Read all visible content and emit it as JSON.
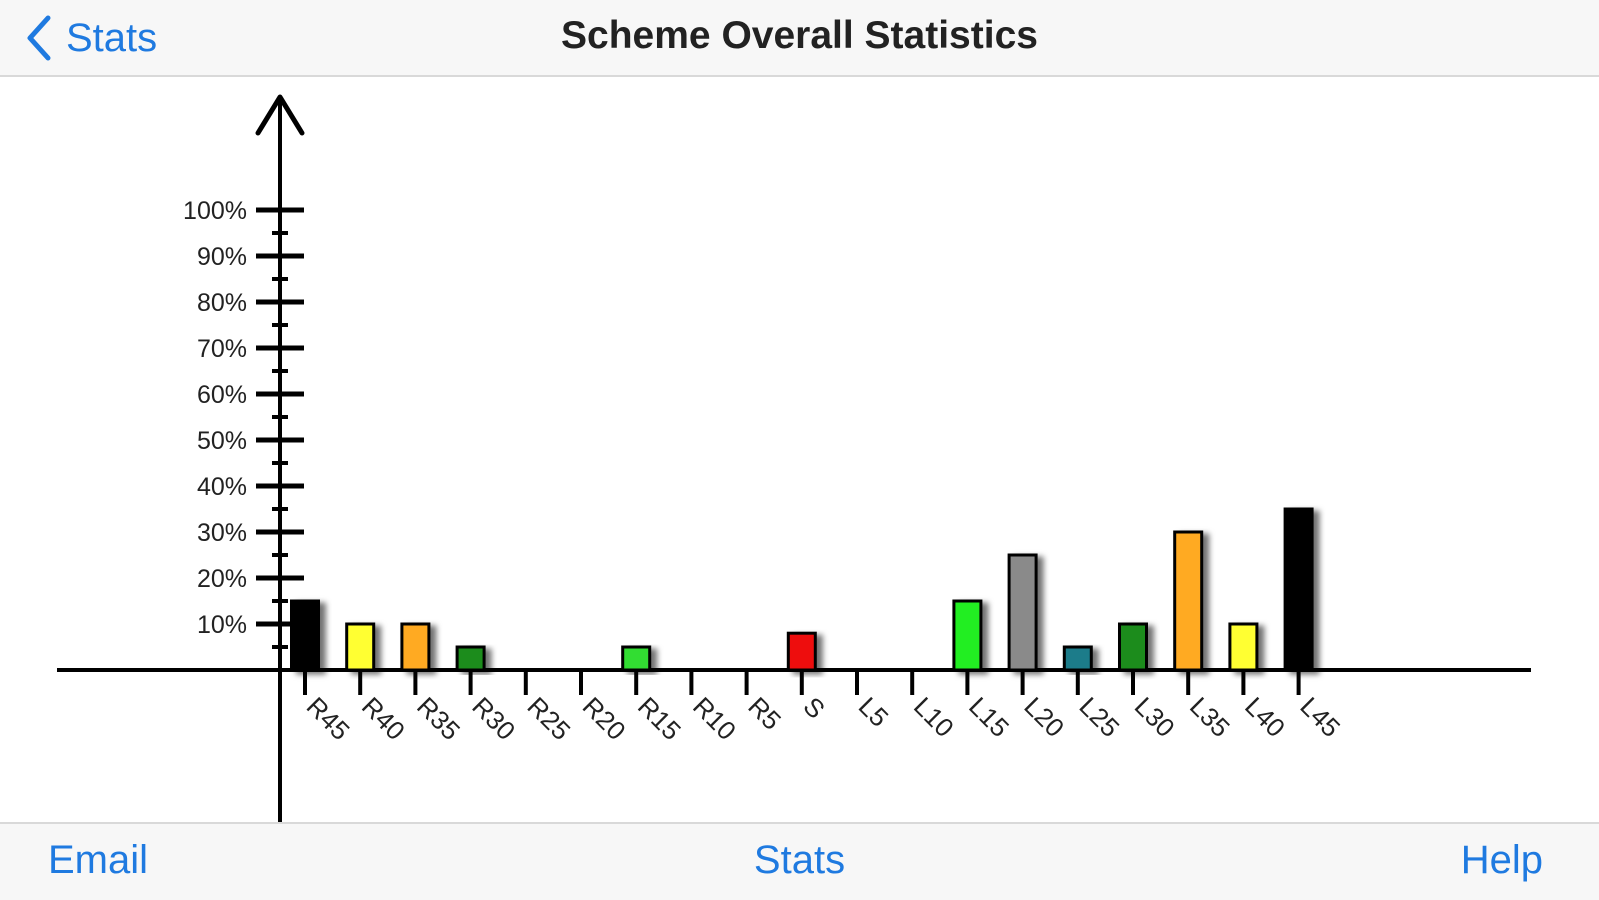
{
  "navbar": {
    "back_label": "Stats",
    "back_icon": "chevron-left-icon",
    "title": "Scheme Overall Statistics"
  },
  "toolbar": {
    "email_label": "Email",
    "stats_label": "Stats",
    "help_label": "Help"
  },
  "colors": {
    "accent": "#1f7ae0"
  },
  "chart_data": {
    "type": "bar",
    "title": "",
    "xlabel": "",
    "ylabel": "",
    "ylim": [
      0,
      100
    ],
    "y_ticks": [
      "10%",
      "20%",
      "30%",
      "40%",
      "50%",
      "60%",
      "70%",
      "80%",
      "90%",
      "100%"
    ],
    "categories": [
      "R45",
      "R40",
      "R35",
      "R30",
      "R25",
      "R20",
      "R15",
      "R10",
      "R5",
      "S",
      "L5",
      "L10",
      "L15",
      "L20",
      "L25",
      "L30",
      "L35",
      "L40",
      "L45"
    ],
    "values": [
      15,
      10,
      10,
      5,
      0,
      0,
      5,
      0,
      0,
      8,
      0,
      0,
      15,
      25,
      5,
      10,
      30,
      10,
      35
    ],
    "bar_colors": [
      "#000000",
      "#ffff33",
      "#ffaa22",
      "#1e8c1e",
      "#ffffff",
      "#ffffff",
      "#33dd33",
      "#ffffff",
      "#ffffff",
      "#ee1111",
      "#ffffff",
      "#ffffff",
      "#22ee22",
      "#8a8a8a",
      "#1b7c8a",
      "#1e8c1e",
      "#ffaa22",
      "#ffff33",
      "#000000"
    ],
    "grid": false,
    "legend": "none"
  }
}
